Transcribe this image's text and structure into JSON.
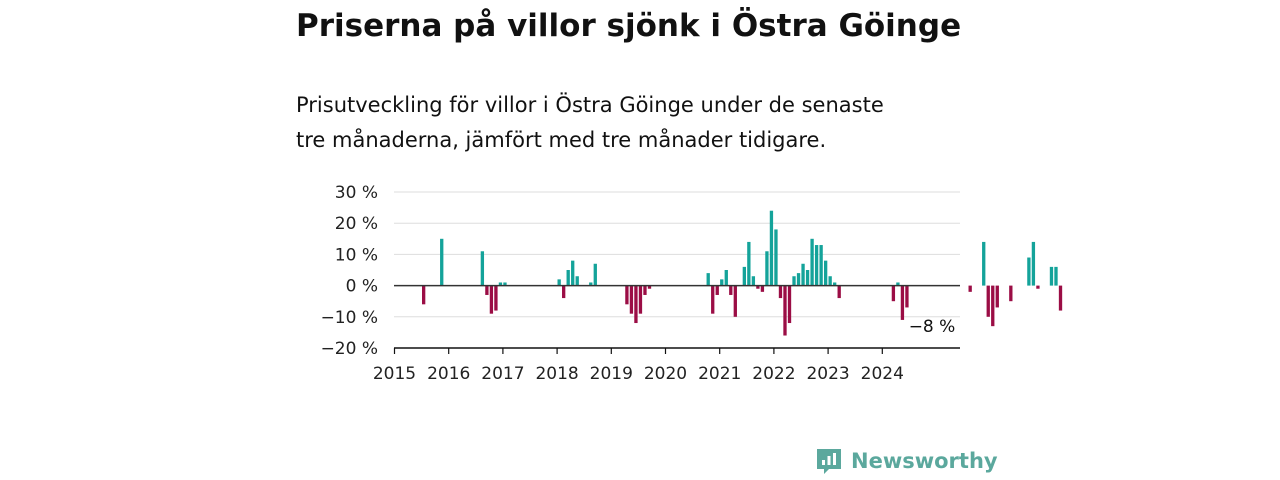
{
  "title": "Priserna på villor sjönk i Östra Göinge",
  "subtitle_lines": [
    "Prisutveckling för villor i Östra Göinge under de senaste",
    "tre månaderna, jämfört med tre månader tidigare."
  ],
  "brand": {
    "name": "Newsworthy",
    "icon": "newsworthy-logo-icon"
  },
  "colors": {
    "positive": "#14a39a",
    "negative": "#9b0d45",
    "grid": "#dddddd",
    "axis": "#111111"
  },
  "chart_data": {
    "type": "bar",
    "title": "Priserna på villor sjönk i Östra Göinge",
    "ylim": [
      -20,
      30
    ],
    "yticks": [
      30,
      20,
      10,
      0,
      -10,
      -20
    ],
    "ytick_labels": [
      "30 %",
      "20 %",
      "10 %",
      "0 %",
      "−10 %",
      "−20 %"
    ],
    "xticks": [
      "2015",
      "2016",
      "2017",
      "2018",
      "2019",
      "2020",
      "2021",
      "2022",
      "2023",
      "2024"
    ],
    "grid": true,
    "unit": "%",
    "series": [
      {
        "values": [
          0,
          0,
          0,
          0,
          0,
          0,
          -6,
          0,
          0,
          0,
          15,
          0,
          0,
          0,
          0,
          0,
          0,
          0,
          0,
          11,
          -3,
          -9,
          -8,
          1,
          1,
          0,
          0,
          0,
          0,
          0,
          0,
          0,
          0,
          0,
          0,
          0,
          2,
          -4,
          5,
          8,
          3,
          0,
          0,
          1,
          7,
          0,
          0,
          0,
          0,
          0,
          0,
          -6,
          -9,
          -12,
          -9,
          -3,
          -1,
          0,
          0,
          0,
          0,
          0,
          0,
          0,
          0,
          0,
          0,
          0,
          0,
          4,
          -9,
          -3,
          2,
          5,
          -3,
          -10,
          0,
          6,
          14,
          3,
          -1,
          -2,
          11,
          24,
          18,
          -4,
          -16,
          -12,
          3,
          4,
          7,
          5,
          15,
          13,
          13,
          8,
          3,
          1,
          -4,
          0,
          0,
          0,
          0,
          0,
          0,
          0,
          0,
          0,
          0,
          0,
          -5,
          1,
          -11,
          -7,
          0,
          0,
          0,
          0,
          0,
          0,
          0,
          0,
          0,
          0,
          0,
          0,
          0,
          -2,
          0,
          0,
          14,
          -10,
          -13,
          -7,
          0,
          0,
          -5,
          0,
          0,
          0,
          9,
          14,
          -1,
          0,
          0,
          6,
          6,
          -8
        ],
        "start": "2015-01"
      }
    ],
    "annotations": [
      {
        "label": "−8 %"
      }
    ]
  }
}
